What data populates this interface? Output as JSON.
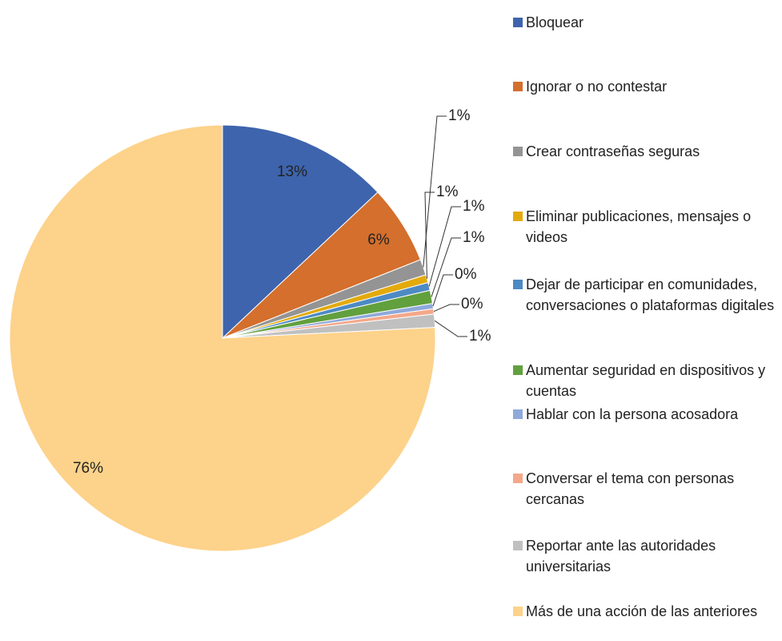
{
  "chart_data": {
    "type": "pie",
    "categories": [
      "Bloquear",
      "Ignorar o no contestar",
      "Crear contraseñas seguras",
      "Eliminar publicaciones, mensajes o videos",
      "Dejar de participar en comunidades, conversaciones o plataformas digitales",
      "Aumentar seguridad en dispositivos y cuentas",
      "Hablar con la persona acosadora",
      "Conversar el tema con personas cercanas",
      "Reportar ante las autoridades universitarias",
      "Más de una acción de las anteriores"
    ],
    "values": [
      13.0,
      6.0,
      1.2,
      0.6,
      0.6,
      1.0,
      0.4,
      0.4,
      1.0,
      75.8
    ],
    "value_labels": [
      "13%",
      "6%",
      "1%",
      "1%",
      "1%",
      "1%",
      "0%",
      "0%",
      "1%",
      "76%"
    ],
    "colors": [
      "#3e64ad",
      "#d46f2d",
      "#949494",
      "#e3aa0b",
      "#4d8ac4",
      "#62a03e",
      "#8ea9db",
      "#f4a88a",
      "#c0c0c0",
      "#fdd28a"
    ],
    "legend": "right"
  }
}
